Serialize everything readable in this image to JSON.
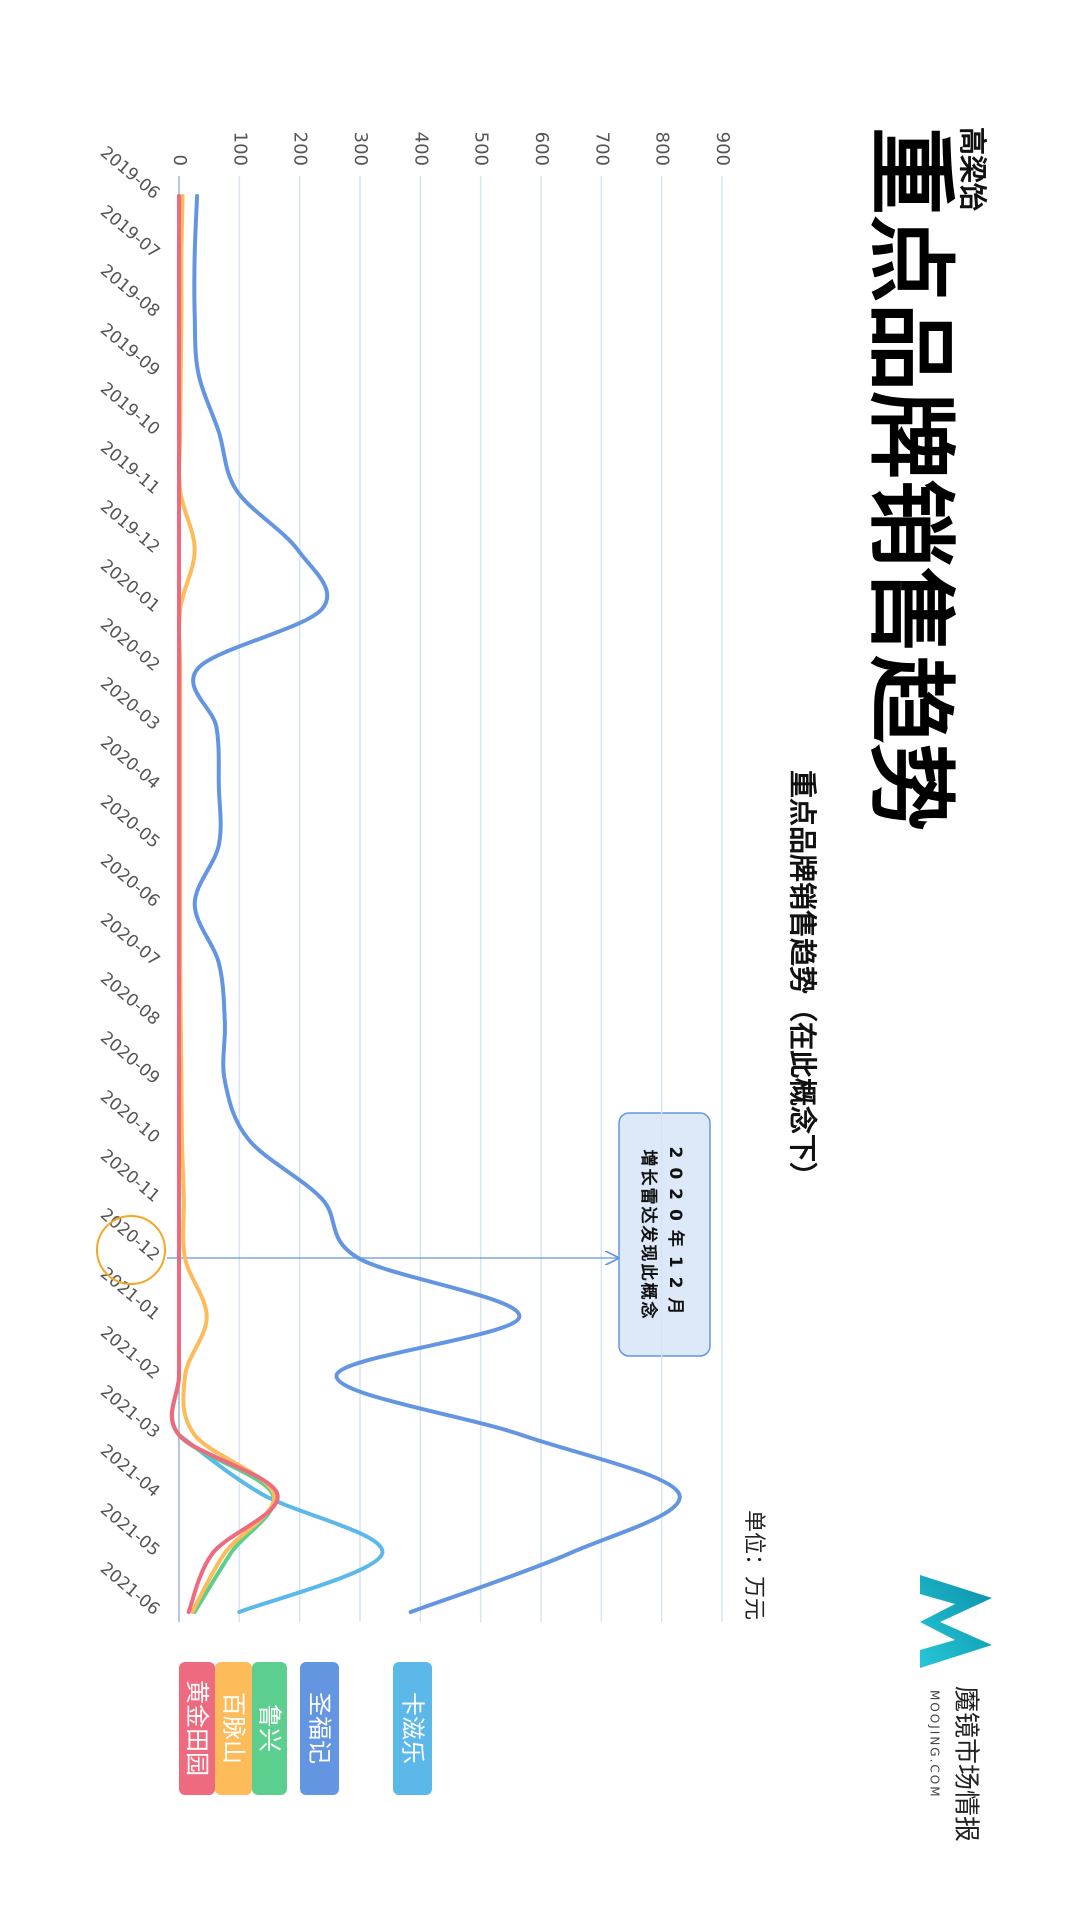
{
  "chart_data": {
    "type": "line",
    "author": "高梁饴",
    "title": "重点品牌销售趋势",
    "subtitle": "重点品牌销售趋势（在此概念下）",
    "unit": "单位：万元",
    "annotation": [
      "2020年12月",
      "增长雷达发现此概念"
    ],
    "logo": {
      "name": "魔镜市场情报",
      "site": "MOOJING.COM"
    },
    "categories": [
      "2019-06",
      "2019-07",
      "2019-08",
      "2019-09",
      "2019-10",
      "2019-11",
      "2019-12",
      "2020-01",
      "2020-02",
      "2020-03",
      "2020-04",
      "2020-05",
      "2020-06",
      "2020-07",
      "2020-08",
      "2020-09",
      "2020-10",
      "2020-11",
      "2020-12",
      "2021-01",
      "2021-02",
      "2021-03",
      "2021-04",
      "2021-05",
      "2021-06"
    ],
    "series": [
      {
        "name": "卡滋乐",
        "color": "#5bb8e8",
        "values": [
          null,
          null,
          null,
          null,
          null,
          null,
          null,
          null,
          null,
          null,
          null,
          null,
          null,
          null,
          null,
          null,
          null,
          null,
          null,
          null,
          null,
          0,
          137,
          337,
          100
        ]
      },
      {
        "name": "圣福记",
        "color": "#6495e0",
        "values": [
          30,
          26,
          26,
          32,
          66,
          96,
          197,
          237,
          32,
          62,
          66,
          66,
          26,
          66,
          76,
          76,
          116,
          237,
          297,
          564,
          261,
          568,
          829,
          649,
          384
        ]
      },
      {
        "name": "鲁兴",
        "color": "#5ccf8e",
        "values": [
          0,
          0,
          0,
          0,
          0,
          0,
          0,
          0,
          0,
          0,
          0,
          0,
          0,
          0,
          0,
          0,
          0,
          0,
          0,
          0,
          0,
          0,
          155,
          86,
          26
        ]
      },
      {
        "name": "百脉山",
        "color": "#fdbb5a",
        "values": [
          6,
          4,
          4,
          3,
          2,
          2,
          26,
          2,
          2,
          2,
          2,
          2,
          2,
          2,
          3,
          4,
          5,
          8,
          10,
          46,
          10,
          26,
          157,
          76,
          22
        ]
      },
      {
        "name": "黄金田园",
        "color": "#ee6a7f",
        "values": [
          0,
          0,
          0,
          0,
          0,
          0,
          0,
          0,
          0,
          0,
          0,
          0,
          0,
          0,
          0,
          0,
          0,
          0,
          0,
          0,
          0,
          0,
          163,
          56,
          16
        ]
      }
    ],
    "ylim": [
      0,
      900
    ],
    "yticks": [
      0,
      100,
      200,
      300,
      400,
      500,
      600,
      700,
      800,
      900
    ],
    "grid": true,
    "highlight_category": 18
  }
}
